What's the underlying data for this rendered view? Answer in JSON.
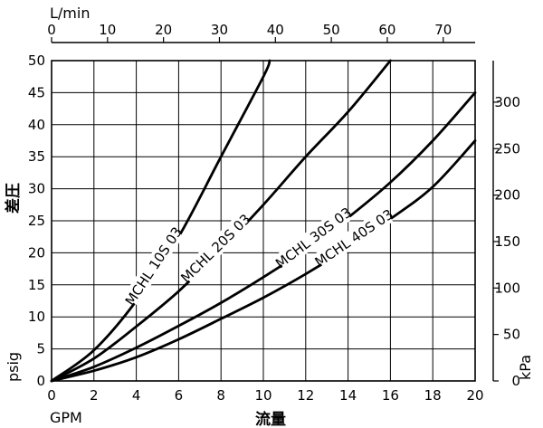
{
  "chart_data": {
    "type": "line",
    "x_axis_bottom": {
      "unit": "GPM",
      "label": "流量",
      "range": [
        0,
        20
      ],
      "ticks": [
        "0",
        "2",
        "4",
        "6",
        "8",
        "10",
        "12",
        "14",
        "16",
        "18",
        "20"
      ]
    },
    "x_axis_top": {
      "unit": "L/min",
      "range": [
        0,
        75.7
      ],
      "ticks": [
        "0",
        "10",
        "20",
        "30",
        "40",
        "50",
        "60",
        "70"
      ]
    },
    "y_axis_left": {
      "unit": "psig",
      "label": "差圧",
      "range": [
        0,
        50
      ],
      "ticks": [
        "0",
        "5",
        "10",
        "15",
        "20",
        "25",
        "30",
        "35",
        "40",
        "45",
        "50"
      ]
    },
    "y_axis_right": {
      "unit": "kPa",
      "range": [
        0,
        344.7
      ],
      "ticks": [
        "0",
        "50",
        "100",
        "150",
        "200",
        "250",
        "300"
      ]
    },
    "grid": true,
    "series": [
      {
        "name": "MCHL 10S 03",
        "x": [
          0,
          2,
          4,
          6,
          8,
          10,
          10.3
        ],
        "y": [
          0,
          4.8,
          12.5,
          22.5,
          35.0,
          47.5,
          50
        ]
      },
      {
        "name": "MCHL 20S 03",
        "x": [
          0,
          2,
          4,
          6,
          8,
          10,
          12,
          14,
          16
        ],
        "y": [
          0,
          3.5,
          8.5,
          14.0,
          20.5,
          27.5,
          35.0,
          42.0,
          50
        ]
      },
      {
        "name": "MCHL 30S 03",
        "x": [
          0,
          2,
          4,
          6,
          8,
          10,
          12,
          14,
          16,
          18,
          20
        ],
        "y": [
          0,
          2.2,
          5.2,
          8.6,
          12.2,
          16.2,
          20.5,
          25.5,
          31.0,
          37.5,
          45.0
        ]
      },
      {
        "name": "MCHL 40S 03",
        "x": [
          0,
          2,
          4,
          6,
          8,
          10,
          12,
          14,
          16,
          18,
          20
        ],
        "y": [
          0,
          1.6,
          3.7,
          6.5,
          9.7,
          13.0,
          16.7,
          20.8,
          25.3,
          30.3,
          37.5
        ]
      }
    ]
  }
}
